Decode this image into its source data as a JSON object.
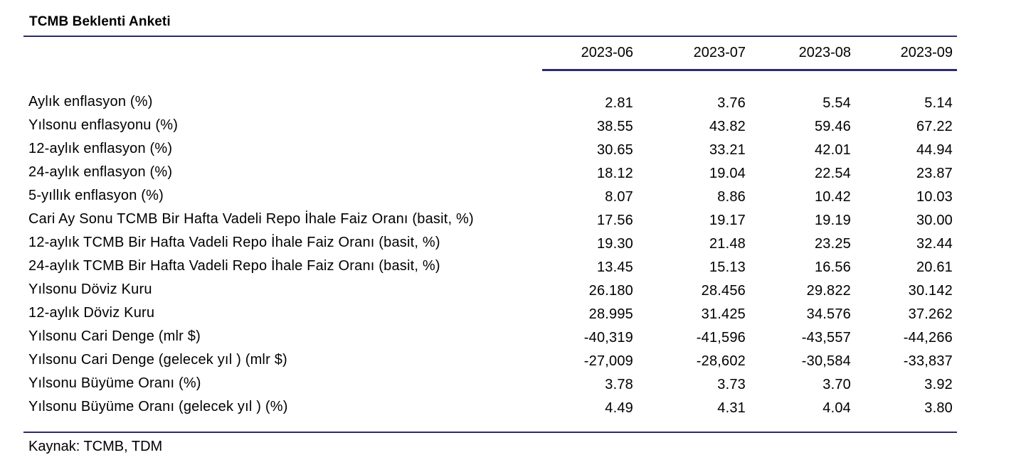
{
  "title": "TCMB Beklenti Anketi",
  "columns": [
    "2023-06",
    "2023-07",
    "2023-08",
    "2023-09"
  ],
  "rows": [
    {
      "label": "Aylık enflasyon (%)",
      "values": [
        "2.81",
        "3.76",
        "5.54",
        "5.14"
      ]
    },
    {
      "label": "Yılsonu enflasyonu (%)",
      "values": [
        "38.55",
        "43.82",
        "59.46",
        "67.22"
      ]
    },
    {
      "label": "12-aylık enflasyon (%)",
      "values": [
        "30.65",
        "33.21",
        "42.01",
        "44.94"
      ]
    },
    {
      "label": "24-aylık enflasyon (%)",
      "values": [
        "18.12",
        "19.04",
        "22.54",
        "23.87"
      ]
    },
    {
      "label": "5-yıllık enflasyon (%)",
      "values": [
        "8.07",
        "8.86",
        "10.42",
        "10.03"
      ]
    },
    {
      "label": "Cari Ay Sonu TCMB Bir Hafta Vadeli Repo İhale Faiz Oranı (basit, %)",
      "values": [
        "17.56",
        "19.17",
        "19.19",
        "30.00"
      ]
    },
    {
      "label": "12-aylık TCMB Bir Hafta Vadeli Repo İhale Faiz Oranı (basit, %)",
      "values": [
        "19.30",
        "21.48",
        "23.25",
        "32.44"
      ]
    },
    {
      "label": "24-aylık TCMB Bir Hafta Vadeli Repo İhale Faiz Oranı (basit, %)",
      "values": [
        "13.45",
        "15.13",
        "16.56",
        "20.61"
      ]
    },
    {
      "label": "Yılsonu Döviz Kuru",
      "values": [
        "26.180",
        "28.456",
        "29.822",
        "30.142"
      ]
    },
    {
      "label": "12-aylık Döviz Kuru",
      "values": [
        "28.995",
        "31.425",
        "34.576",
        "37.262"
      ]
    },
    {
      "label": "Yılsonu Cari Denge (mlr $)",
      "values": [
        "-40,319",
        "-41,596",
        "-43,557",
        "-44,266"
      ]
    },
    {
      "label": "Yılsonu Cari Denge (gelecek yıl ) (mlr $)",
      "values": [
        "-27,009",
        "-28,602",
        "-30,584",
        "-33,837"
      ]
    },
    {
      "label": "Yılsonu Büyüme Oranı (%)",
      "values": [
        "3.78",
        "3.73",
        "3.70",
        "3.92"
      ]
    },
    {
      "label": "Yılsonu Büyüme Oranı (gelecek yıl ) (%)",
      "values": [
        "4.49",
        "4.31",
        "4.04",
        "3.80"
      ]
    }
  ],
  "source": "Kaynak: TCMB, TDM",
  "colors": {
    "rule": "#2b2a6b",
    "text": "#000000"
  }
}
